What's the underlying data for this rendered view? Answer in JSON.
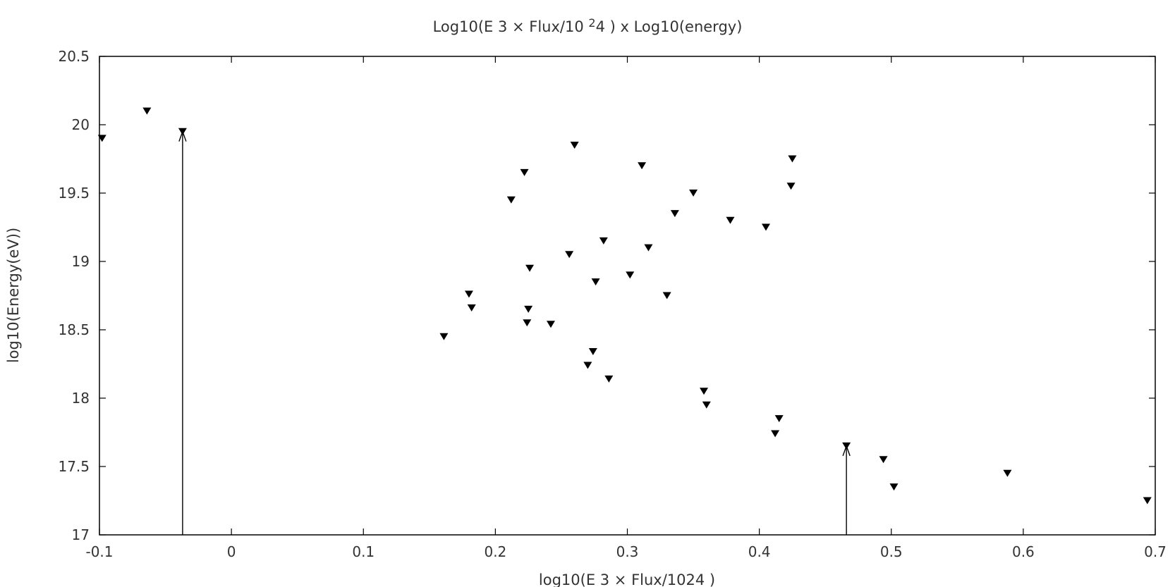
{
  "chart_data": {
    "type": "scatter",
    "title": "Log10(E 3 × Flux/10 2 4 ) x Log10(energy)",
    "title_parts": {
      "pre": "Log10(E 3 × Flux/10 ",
      "sup": "2",
      "post": "4 ) x Log10(energy)"
    },
    "xlabel": "log10(E 3 × Flux/1024 )",
    "ylabel": "log10(Energy(eV))",
    "xlim": [
      -0.1,
      0.7
    ],
    "ylim": [
      17,
      20.5
    ],
    "xticks": [
      "-0.1",
      "0",
      "0.1",
      "0.2",
      "0.3",
      "0.4",
      "0.5",
      "0.6",
      "0.7"
    ],
    "yticks": [
      "17",
      "17.5",
      "18",
      "18.5",
      "19",
      "19.5",
      "20",
      "20.5"
    ],
    "grid": false,
    "legend": false,
    "marker": "down-triangle",
    "marker_color": "#000000",
    "points": [
      {
        "x": -0.098,
        "y": 19.9
      },
      {
        "x": -0.064,
        "y": 20.1
      },
      {
        "x": -0.037,
        "y": 19.95
      },
      {
        "x": 0.161,
        "y": 18.45
      },
      {
        "x": 0.18,
        "y": 18.76
      },
      {
        "x": 0.182,
        "y": 18.66
      },
      {
        "x": 0.212,
        "y": 19.45
      },
      {
        "x": 0.222,
        "y": 19.65
      },
      {
        "x": 0.224,
        "y": 18.55
      },
      {
        "x": 0.225,
        "y": 18.65
      },
      {
        "x": 0.226,
        "y": 18.95
      },
      {
        "x": 0.242,
        "y": 18.54
      },
      {
        "x": 0.256,
        "y": 19.05
      },
      {
        "x": 0.26,
        "y": 19.85
      },
      {
        "x": 0.27,
        "y": 18.24
      },
      {
        "x": 0.274,
        "y": 18.34
      },
      {
        "x": 0.276,
        "y": 18.85
      },
      {
        "x": 0.282,
        "y": 19.15
      },
      {
        "x": 0.286,
        "y": 18.14
      },
      {
        "x": 0.302,
        "y": 18.9
      },
      {
        "x": 0.311,
        "y": 19.7
      },
      {
        "x": 0.316,
        "y": 19.1
      },
      {
        "x": 0.33,
        "y": 18.75
      },
      {
        "x": 0.336,
        "y": 19.35
      },
      {
        "x": 0.35,
        "y": 19.5
      },
      {
        "x": 0.358,
        "y": 18.05
      },
      {
        "x": 0.36,
        "y": 17.95
      },
      {
        "x": 0.378,
        "y": 19.3
      },
      {
        "x": 0.405,
        "y": 19.25
      },
      {
        "x": 0.412,
        "y": 17.74
      },
      {
        "x": 0.415,
        "y": 17.85
      },
      {
        "x": 0.424,
        "y": 19.55
      },
      {
        "x": 0.425,
        "y": 19.75
      },
      {
        "x": 0.466,
        "y": 17.65
      },
      {
        "x": 0.494,
        "y": 17.55
      },
      {
        "x": 0.502,
        "y": 17.35
      },
      {
        "x": 0.588,
        "y": 17.45
      },
      {
        "x": 0.694,
        "y": 17.25
      }
    ],
    "upper_limit_arrows": [
      {
        "x": -0.037,
        "y_from": 17,
        "y_to": 19.95
      },
      {
        "x": 0.466,
        "y_from": 17,
        "y_to": 17.65
      }
    ]
  }
}
